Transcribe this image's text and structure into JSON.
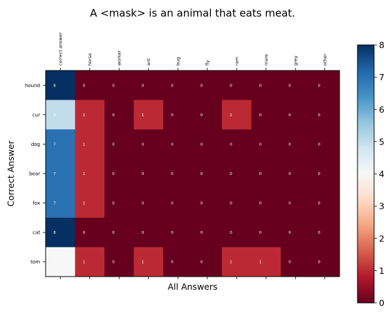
{
  "chart_data": {
    "type": "heatmap",
    "title": "A <mask> is an animal that eats meat.",
    "xlabel": "All Answers",
    "ylabel": "Correct Answer",
    "x_categories": [
      "correct answer",
      "horse",
      "worker",
      "ant",
      "bug",
      "fly",
      "ram",
      "mare",
      "grey",
      "other"
    ],
    "y_categories": [
      "hound",
      "cur",
      "dog",
      "bear",
      "fox",
      "cat",
      "tom"
    ],
    "values": [
      [
        8,
        0,
        0,
        0,
        0,
        0,
        0,
        0,
        0,
        0
      ],
      [
        5,
        1,
        0,
        1,
        0,
        0,
        1,
        0,
        0,
        0
      ],
      [
        7,
        1,
        0,
        0,
        0,
        0,
        0,
        0,
        0,
        0
      ],
      [
        7,
        1,
        0,
        0,
        0,
        0,
        0,
        0,
        0,
        0
      ],
      [
        7,
        1,
        0,
        0,
        0,
        0,
        0,
        0,
        0,
        0
      ],
      [
        8,
        0,
        0,
        0,
        0,
        0,
        0,
        0,
        0,
        0
      ],
      [
        4,
        1,
        0,
        1,
        0,
        0,
        1,
        1,
        0,
        0
      ]
    ],
    "colormap": "RdBu",
    "vmin": 0,
    "vmax": 8,
    "colorbar_ticks": [
      "0",
      "1",
      "2",
      "3",
      "4",
      "5",
      "6",
      "7",
      "8"
    ],
    "grid": false,
    "colorbar_position": "right"
  }
}
